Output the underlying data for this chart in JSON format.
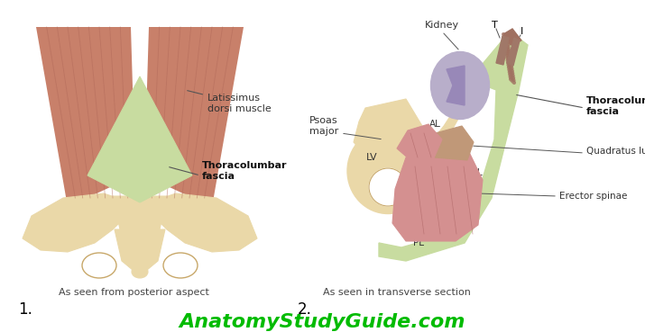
{
  "background_color": "#ffffff",
  "watermark": "AnatomyStudyGuide.com",
  "watermark_color": "#00bb00",
  "watermark_fontsize": 16,
  "label1": "1.",
  "label2": "2.",
  "caption1": "As seen from posterior aspect",
  "caption2": "As seen in transverse section",
  "caption_fontsize": 8,
  "label_fontsize": 12,
  "pelvis_color": "#EAD8A8",
  "pelvis_dark": "#C8A86A",
  "muscle_color": "#C8806A",
  "muscle_light": "#D4A090",
  "fascia_green": "#C8DCA0",
  "fascia_dark": "#9ABB6A",
  "kidney_color": "#B8AECA",
  "kidney_dark": "#8878AA",
  "fig_width": 7.15,
  "fig_height": 3.69,
  "dpi": 100
}
